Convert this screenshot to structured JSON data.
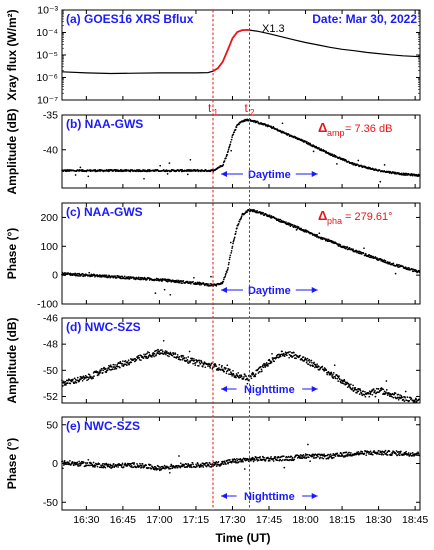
{
  "figure": {
    "xlabel": "Time (UT)",
    "x_ticks": [
      "16:30",
      "16:45",
      "17:00",
      "17:15",
      "17:30",
      "17:45",
      "18:00",
      "18:15",
      "18:30",
      "18:45"
    ],
    "date_label": "Date: Mar 30, 2022",
    "t1_label": "t",
    "t1_sub": "1",
    "t2_label": "t",
    "t2_sub": "2",
    "t1_time": "17:22",
    "t2_time": "17:37",
    "x_range": [
      "16:20",
      "18:47"
    ]
  },
  "colors": {
    "panel_label": "#1a1aff",
    "marker_red": "#e8141a",
    "data": "#000000"
  },
  "chart_data": [
    {
      "type": "line",
      "panel": "a",
      "title": "(a) GOES16 XRS Bflux",
      "ylabel": "Xray flux (W/m²)",
      "yscale": "log",
      "ylim": [
        1e-07,
        0.001
      ],
      "yticks": [
        "10⁻⁷",
        "10⁻⁶",
        "10⁻⁵",
        "10⁻⁴",
        "10⁻³"
      ],
      "annotation": "X1.3",
      "series": [
        {
          "color": "#000000",
          "points": [
            [
              "16:20",
              1.8e-06
            ],
            [
              "16:30",
              1.6e-06
            ],
            [
              "16:40",
              1.5e-06
            ],
            [
              "16:50",
              1.55e-06
            ],
            [
              "17:00",
              1.6e-06
            ],
            [
              "17:10",
              1.6e-06
            ],
            [
              "17:15",
              1.6e-06
            ],
            [
              "17:20",
              1.65e-06
            ],
            [
              "17:22",
              1.9e-06
            ]
          ]
        },
        {
          "color": "#e8141a",
          "points": [
            [
              "17:22",
              1.9e-06
            ],
            [
              "17:24",
              2.6e-06
            ],
            [
              "17:26",
              5e-06
            ],
            [
              "17:28",
              1.6e-05
            ],
            [
              "17:30",
              5.5e-05
            ],
            [
              "17:32",
              0.000105
            ],
            [
              "17:34",
              0.000128
            ],
            [
              "17:36",
              0.00013
            ],
            [
              "17:37",
              0.000128
            ]
          ]
        },
        {
          "color": "#000000",
          "points": [
            [
              "17:37",
              0.000128
            ],
            [
              "17:40",
              0.000115
            ],
            [
              "17:45",
              8.8e-05
            ],
            [
              "17:50",
              6.5e-05
            ],
            [
              "17:55",
              4.8e-05
            ],
            [
              "18:00",
              3.6e-05
            ],
            [
              "18:05",
              2.8e-05
            ],
            [
              "18:10",
              2.2e-05
            ],
            [
              "18:15",
              1.8e-05
            ],
            [
              "18:20",
              1.55e-05
            ],
            [
              "18:25",
              1.3e-05
            ],
            [
              "18:30",
              1.15e-05
            ],
            [
              "18:35",
              1.02e-05
            ],
            [
              "18:40",
              9.2e-06
            ],
            [
              "18:47",
              8.4e-06
            ]
          ]
        }
      ]
    },
    {
      "type": "scatter",
      "panel": "b",
      "title": "(b) NAA-GWS",
      "ylabel": "Amplitude (dB)",
      "ylim": [
        -45.5,
        -35
      ],
      "yticks": [
        "-35",
        "-40"
      ],
      "delta_symbol": "Δ",
      "delta_sub": "amp",
      "delta_value": "= 7.36 dB",
      "period_label": "Daytime",
      "series": [
        {
          "color": "#000000",
          "points": [
            [
              "16:20",
              -43
            ],
            [
              "16:40",
              -43
            ],
            [
              "17:00",
              -43
            ],
            [
              "17:15",
              -43
            ],
            [
              "17:22",
              -43
            ],
            [
              "17:26",
              -42.2
            ],
            [
              "17:28",
              -40.5
            ],
            [
              "17:30",
              -38
            ],
            [
              "17:32",
              -36.4
            ],
            [
              "17:34",
              -35.9
            ],
            [
              "17:36",
              -35.7
            ],
            [
              "17:38",
              -35.8
            ],
            [
              "17:45",
              -36.6
            ],
            [
              "17:50",
              -37.4
            ],
            [
              "18:00",
              -38.9
            ],
            [
              "18:10",
              -40.6
            ],
            [
              "18:20",
              -42.1
            ],
            [
              "18:30",
              -43
            ],
            [
              "18:40",
              -43.5
            ],
            [
              "18:47",
              -43.7
            ]
          ]
        }
      ]
    },
    {
      "type": "scatter",
      "panel": "c",
      "title": "(c) NAA-GWS",
      "ylabel": "Phase (°)",
      "ylim": [
        -100,
        250
      ],
      "yticks": [
        "-100",
        "0",
        "100",
        "200"
      ],
      "delta_symbol": "Δ",
      "delta_sub": "pha",
      "delta_value": "= 279.61°",
      "period_label": "Daytime",
      "series": [
        {
          "color": "#000000",
          "points": [
            [
              "16:20",
              5
            ],
            [
              "16:40",
              -5
            ],
            [
              "17:00",
              -16
            ],
            [
              "17:15",
              -28
            ],
            [
              "17:20",
              -33
            ],
            [
              "17:23",
              -35
            ],
            [
              "17:26",
              -25
            ],
            [
              "17:28",
              20
            ],
            [
              "17:30",
              100
            ],
            [
              "17:32",
              170
            ],
            [
              "17:34",
              210
            ],
            [
              "17:36",
              222
            ],
            [
              "17:38",
              225
            ],
            [
              "17:45",
              205
            ],
            [
              "17:55",
              170
            ],
            [
              "18:05",
              135
            ],
            [
              "18:15",
              100
            ],
            [
              "18:25",
              70
            ],
            [
              "18:35",
              40
            ],
            [
              "18:47",
              10
            ]
          ]
        }
      ]
    },
    {
      "type": "scatter",
      "panel": "d",
      "title": "(d) NWC-SZS",
      "ylabel": "Amplitude (dB)",
      "ylim": [
        -52.5,
        -46
      ],
      "yticks": [
        "-46",
        "-48",
        "-50",
        "-52"
      ],
      "period_label": "Nighttime",
      "series": [
        {
          "color": "#000000",
          "points": [
            [
              "16:20",
              -51
            ],
            [
              "16:30",
              -50.6
            ],
            [
              "16:40",
              -49.8
            ],
            [
              "16:50",
              -49.2
            ],
            [
              "17:00",
              -48.6
            ],
            [
              "17:05",
              -48.8
            ],
            [
              "17:15",
              -49.4
            ],
            [
              "17:25",
              -49.8
            ],
            [
              "17:32",
              -50.4
            ],
            [
              "17:37",
              -50.6
            ],
            [
              "17:45",
              -49.4
            ],
            [
              "17:50",
              -48.7
            ],
            [
              "17:55",
              -48.8
            ],
            [
              "18:05",
              -49.7
            ],
            [
              "18:15",
              -50.8
            ],
            [
              "18:20",
              -51.4
            ],
            [
              "18:25",
              -51.9
            ],
            [
              "18:30",
              -51.5
            ],
            [
              "18:35",
              -51.8
            ],
            [
              "18:40",
              -52.2
            ],
            [
              "18:47",
              -52.4
            ]
          ]
        }
      ]
    },
    {
      "type": "scatter",
      "panel": "e",
      "title": "(e) NWC-SZS",
      "ylabel": "Phase (°)",
      "ylim": [
        -60,
        60
      ],
      "yticks": [
        "-50",
        "0",
        "50"
      ],
      "period_label": "Nighttime",
      "series": [
        {
          "color": "#000000",
          "points": [
            [
              "16:20",
              1
            ],
            [
              "16:30",
              -1
            ],
            [
              "16:40",
              -3
            ],
            [
              "16:50",
              -2
            ],
            [
              "17:00",
              -6
            ],
            [
              "17:05",
              -4
            ],
            [
              "17:10",
              -2
            ],
            [
              "17:15",
              -2
            ],
            [
              "17:20",
              -2
            ],
            [
              "17:25",
              0
            ],
            [
              "17:30",
              3
            ],
            [
              "17:35",
              4
            ],
            [
              "17:40",
              6
            ],
            [
              "17:45",
              6
            ],
            [
              "17:55",
              7
            ],
            [
              "18:00",
              10
            ],
            [
              "18:05",
              9
            ],
            [
              "18:10",
              9
            ],
            [
              "18:20",
              13
            ],
            [
              "18:30",
              14
            ],
            [
              "18:40",
              13
            ],
            [
              "18:47",
              12
            ]
          ]
        }
      ]
    }
  ]
}
